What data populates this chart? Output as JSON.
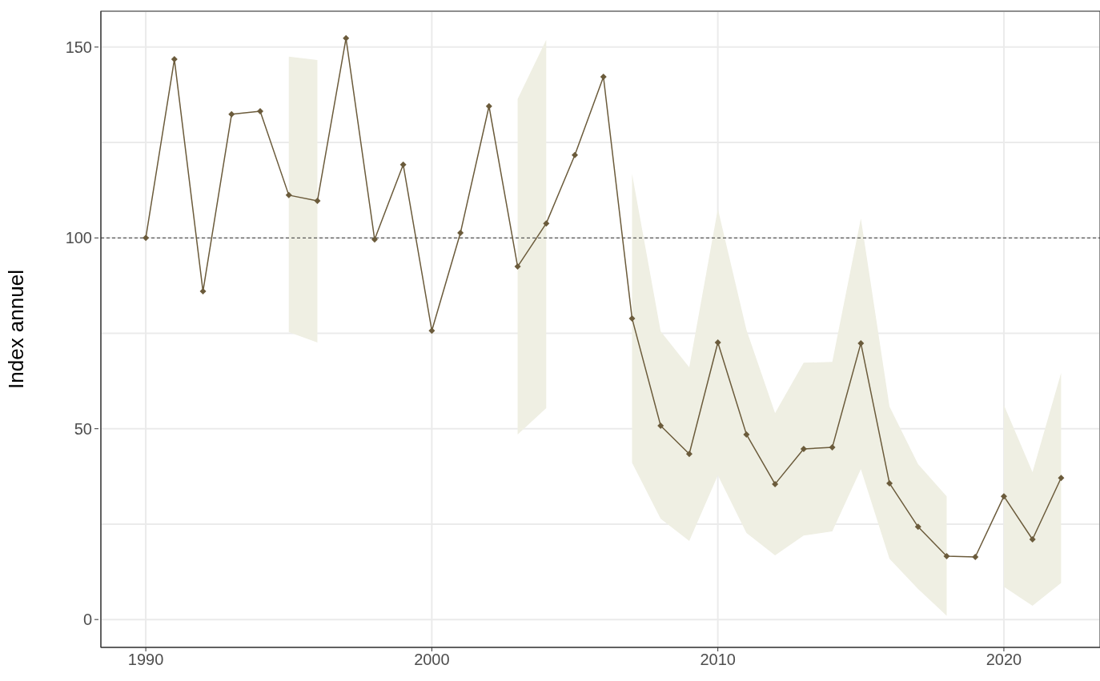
{
  "chart_data": {
    "type": "line",
    "ylabel": "Index annuel",
    "x": [
      1990,
      1991,
      1992,
      1993,
      1994,
      1995,
      1996,
      1997,
      1998,
      1999,
      2000,
      2001,
      2002,
      2003,
      2004,
      2005,
      2006,
      2007,
      2008,
      2009,
      2010,
      2011,
      2012,
      2013,
      2014,
      2015,
      2016,
      2017,
      2018,
      2019,
      2020,
      2021,
      2022
    ],
    "series": [
      {
        "color": "#6b5b3b",
        "values": [
          100,
          146.8,
          86.0,
          132.4,
          133.2,
          111.2,
          109.7,
          152.3,
          99.6,
          119.2,
          75.7,
          101.3,
          134.5,
          92.5,
          103.8,
          121.7,
          142.2,
          78.9,
          50.8,
          43.4,
          72.6,
          48.5,
          35.5,
          44.7,
          45.1,
          72.4,
          35.7,
          24.3,
          16.6,
          16.4,
          32.3,
          21.0,
          37.1
        ],
        "lower": [
          null,
          null,
          null,
          null,
          null,
          75.3,
          72.6,
          null,
          null,
          null,
          null,
          null,
          null,
          48.5,
          55.4,
          null,
          null,
          41.1,
          26.4,
          20.6,
          37.8,
          22.7,
          16.8,
          22.0,
          23.1,
          39.4,
          15.9,
          8.0,
          1.0,
          null,
          8.6,
          3.6,
          9.6
        ],
        "upper": [
          null,
          null,
          null,
          null,
          null,
          147.5,
          146.6,
          null,
          null,
          null,
          null,
          null,
          null,
          136.4,
          151.9,
          null,
          null,
          116.8,
          75.5,
          66.1,
          107.6,
          75.9,
          54.1,
          67.3,
          67.5,
          105.1,
          55.8,
          40.7,
          32.3,
          null,
          56.2,
          38.6,
          64.6
        ]
      }
    ],
    "xlim": [
      1988.43,
      2023.36
    ],
    "xticks": [
      1990,
      2000,
      2010,
      2020
    ],
    "ylim": [
      -7.3,
      159.4
    ],
    "yticks": [
      0,
      {
        "value": 25,
        "label": null
      },
      50,
      {
        "value": 75,
        "label": null
      },
      100,
      {
        "value": 125,
        "label": null
      },
      150
    ],
    "grid": true,
    "marker": "diamond",
    "line_style": "solid",
    "ref_lines": [
      {
        "axis": "y",
        "value": 100,
        "line_style": "dashed",
        "color": "#333333"
      }
    ]
  }
}
